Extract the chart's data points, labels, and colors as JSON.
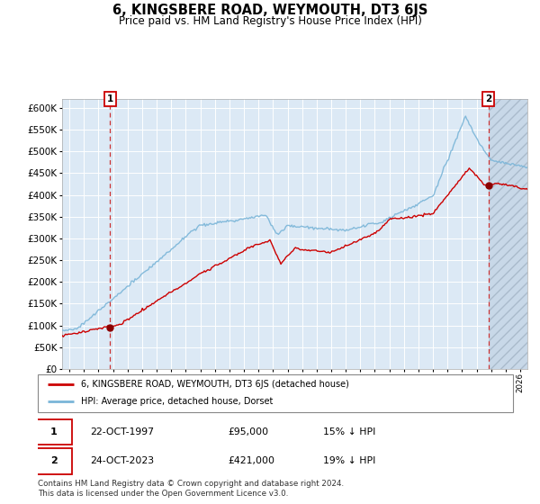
{
  "title": "6, KINGSBERE ROAD, WEYMOUTH, DT3 6JS",
  "subtitle": "Price paid vs. HM Land Registry's House Price Index (HPI)",
  "title_fontsize": 10.5,
  "subtitle_fontsize": 8.5,
  "ylim": [
    0,
    620000
  ],
  "yticks": [
    0,
    50000,
    100000,
    150000,
    200000,
    250000,
    300000,
    350000,
    400000,
    450000,
    500000,
    550000,
    600000
  ],
  "ytick_labels": [
    "£0",
    "£50K",
    "£100K",
    "£150K",
    "£200K",
    "£250K",
    "£300K",
    "£350K",
    "£400K",
    "£450K",
    "£500K",
    "£550K",
    "£600K"
  ],
  "xlim_start": 1994.5,
  "xlim_end": 2026.5,
  "hpi_color": "#7ab5d8",
  "price_color": "#cc0000",
  "dot_color": "#8b0000",
  "bg_color": "#dce9f5",
  "hatch_color": "#c8d8e8",
  "grid_color": "#ffffff",
  "vline_color": "#cc3333",
  "sale1_year": 1997.8,
  "sale1_price": 95000,
  "sale2_year": 2023.8,
  "sale2_price": 421000,
  "legend_line1": "6, KINGSBERE ROAD, WEYMOUTH, DT3 6JS (detached house)",
  "legend_line2": "HPI: Average price, detached house, Dorset",
  "table_row1": [
    "1",
    "22-OCT-1997",
    "£95,000",
    "15% ↓ HPI"
  ],
  "table_row2": [
    "2",
    "24-OCT-2023",
    "£421,000",
    "19% ↓ HPI"
  ],
  "footnote": "Contains HM Land Registry data © Crown copyright and database right 2024.\nThis data is licensed under the Open Government Licence v3.0."
}
